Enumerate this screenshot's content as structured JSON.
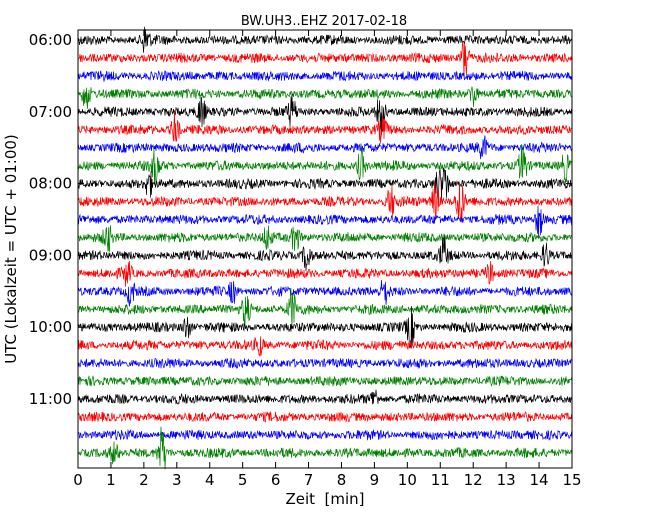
{
  "chart_data": {
    "type": "line",
    "title": "BW.UH3..EHZ 2017-02-18",
    "xlabel": "Zeit  [min]",
    "ylabel": "UTC (Lokalzeit = UTC + 01:00)",
    "xlim": [
      0,
      15
    ],
    "x_ticks": [
      "0",
      "1",
      "2",
      "3",
      "4",
      "5",
      "6",
      "7",
      "8",
      "9",
      "10",
      "11",
      "12",
      "13",
      "14",
      "15"
    ],
    "y_tick_labels": [
      "06:00",
      "07:00",
      "08:00",
      "09:00",
      "10:00",
      "11:00"
    ],
    "y_tick_rows": [
      0,
      4,
      8,
      12,
      16,
      20
    ],
    "trace_colors": [
      "#000000",
      "#ff0000",
      "#0000ff",
      "#008000"
    ],
    "rows": 24,
    "trace_interval_minutes": 15,
    "grid": false,
    "events": [
      {
        "row": 0,
        "minute": 2.05,
        "amplitude": 0.9
      },
      {
        "row": 1,
        "minute": 11.75,
        "amplitude": 1.6
      },
      {
        "row": 3,
        "minute": 0.25,
        "amplitude": 0.9
      },
      {
        "row": 3,
        "minute": 12.0,
        "amplitude": 0.8
      },
      {
        "row": 4,
        "minute": 3.75,
        "amplitude": 1.0
      },
      {
        "row": 4,
        "minute": 6.5,
        "amplitude": 0.9
      },
      {
        "row": 4,
        "minute": 9.2,
        "amplitude": 1.4
      },
      {
        "row": 5,
        "minute": 2.95,
        "amplitude": 1.1
      },
      {
        "row": 5,
        "minute": 9.25,
        "amplitude": 0.8
      },
      {
        "row": 6,
        "minute": 12.3,
        "amplitude": 0.7
      },
      {
        "row": 7,
        "minute": 2.35,
        "amplitude": 1.0
      },
      {
        "row": 7,
        "minute": 8.6,
        "amplitude": 1.0
      },
      {
        "row": 7,
        "minute": 13.5,
        "amplitude": 1.3
      },
      {
        "row": 7,
        "minute": 14.8,
        "amplitude": 0.8
      },
      {
        "row": 8,
        "minute": 2.15,
        "amplitude": 0.8
      },
      {
        "row": 8,
        "minute": 11.15,
        "amplitude": 1.1
      },
      {
        "row": 8,
        "minute": 10.95,
        "amplitude": 0.9
      },
      {
        "row": 9,
        "minute": 11.6,
        "amplitude": 1.7
      },
      {
        "row": 9,
        "minute": 10.85,
        "amplitude": 1.2
      },
      {
        "row": 9,
        "minute": 9.5,
        "amplitude": 1.0
      },
      {
        "row": 10,
        "minute": 14.0,
        "amplitude": 1.1
      },
      {
        "row": 11,
        "minute": 0.9,
        "amplitude": 0.8
      },
      {
        "row": 11,
        "minute": 5.75,
        "amplitude": 0.8
      },
      {
        "row": 11,
        "minute": 6.6,
        "amplitude": 0.9
      },
      {
        "row": 12,
        "minute": 6.95,
        "amplitude": 1.0
      },
      {
        "row": 12,
        "minute": 11.1,
        "amplitude": 1.0
      },
      {
        "row": 12,
        "minute": 14.2,
        "amplitude": 0.8
      },
      {
        "row": 13,
        "minute": 1.5,
        "amplitude": 0.7
      },
      {
        "row": 13,
        "minute": 12.5,
        "amplitude": 0.6
      },
      {
        "row": 14,
        "minute": 1.6,
        "amplitude": 0.8
      },
      {
        "row": 14,
        "minute": 4.7,
        "amplitude": 0.7
      },
      {
        "row": 14,
        "minute": 9.3,
        "amplitude": 0.8
      },
      {
        "row": 15,
        "minute": 5.1,
        "amplitude": 1.0
      },
      {
        "row": 15,
        "minute": 6.5,
        "amplitude": 1.2
      },
      {
        "row": 16,
        "minute": 3.3,
        "amplitude": 0.8
      },
      {
        "row": 16,
        "minute": 10.1,
        "amplitude": 1.2
      },
      {
        "row": 17,
        "minute": 5.5,
        "amplitude": 0.6
      },
      {
        "row": 20,
        "minute": 9.0,
        "amplitude": 0.6
      },
      {
        "row": 23,
        "minute": 2.55,
        "amplitude": 1.6
      },
      {
        "row": 23,
        "minute": 1.1,
        "amplitude": 0.6
      }
    ]
  }
}
